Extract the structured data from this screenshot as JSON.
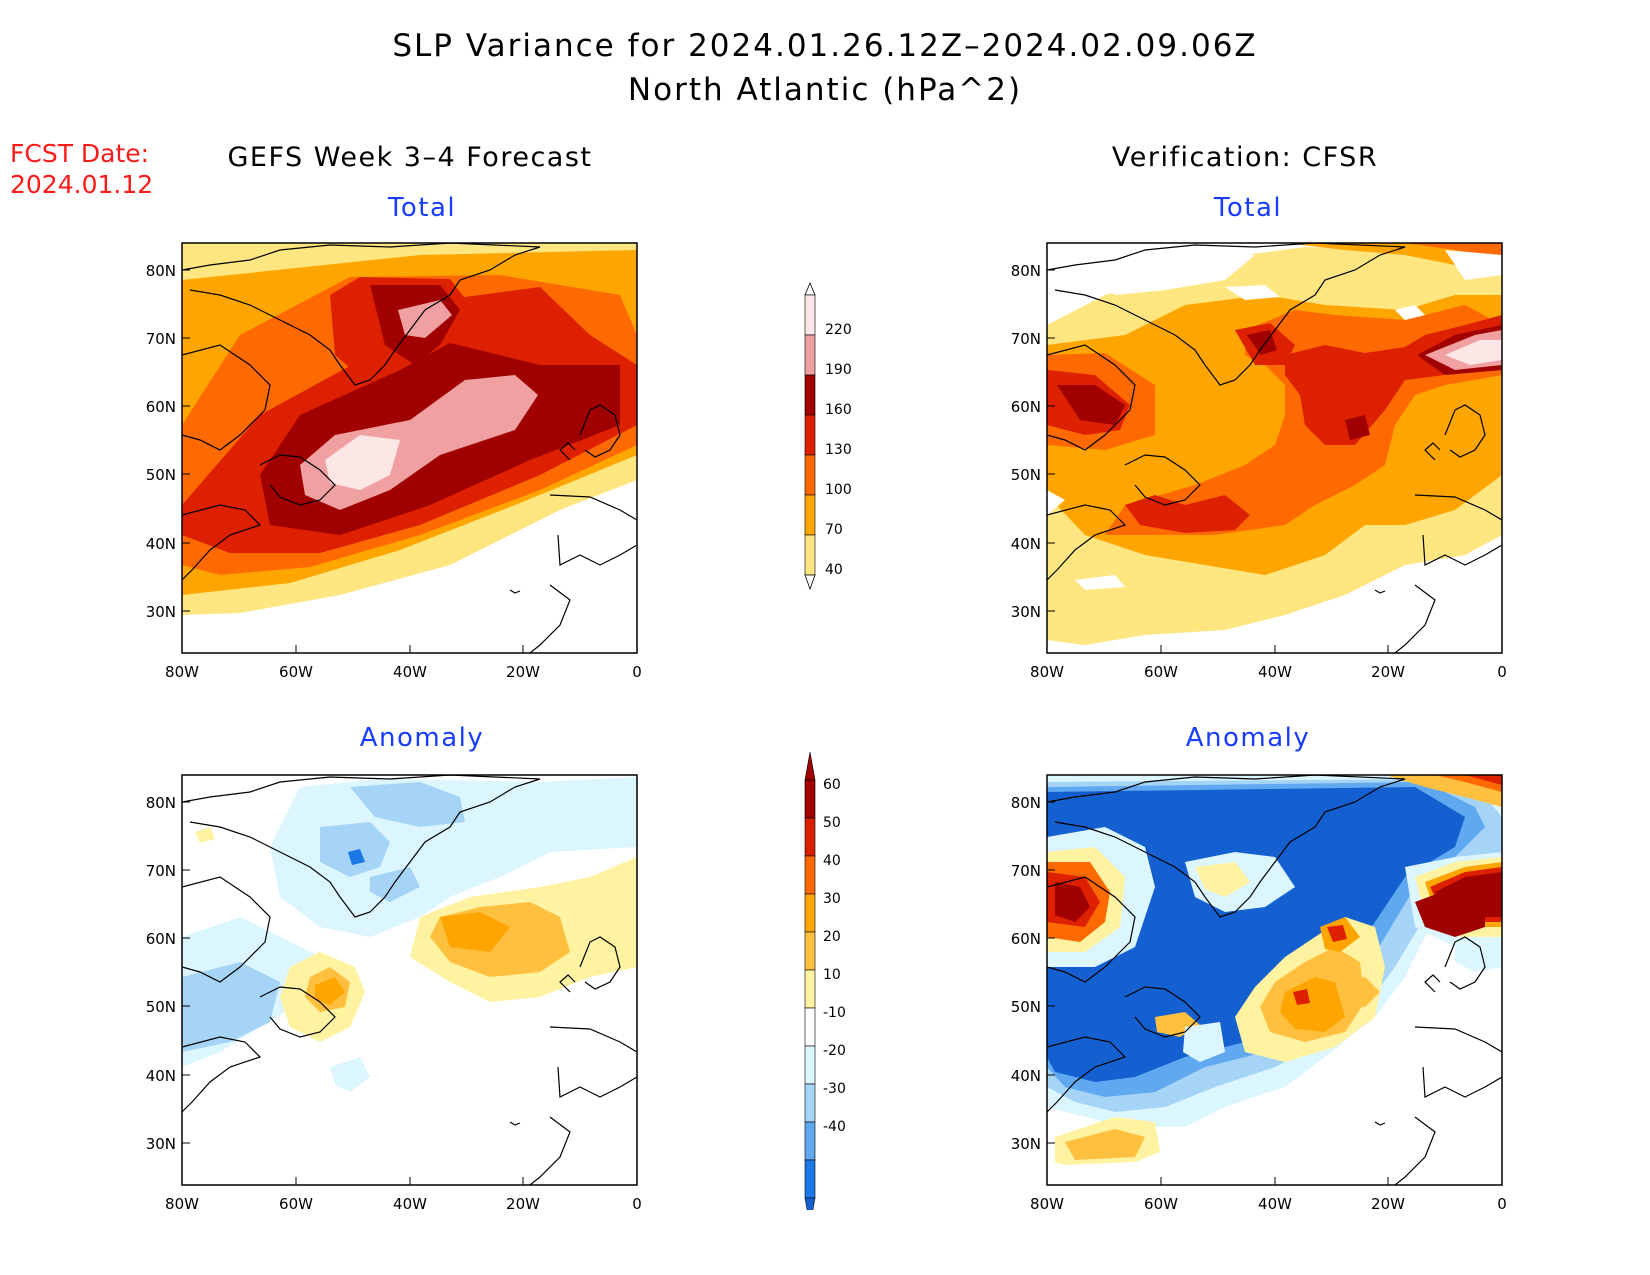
{
  "title": {
    "line1": "SLP Variance for 2024.01.26.12Z–2024.02.09.06Z",
    "line2": "North Atlantic (hPa^2)"
  },
  "fcst": {
    "label": "FCST Date:",
    "date": "2024.01.12"
  },
  "columns": {
    "left": "GEFS Week 3–4 Forecast",
    "right": "Verification: CFSR"
  },
  "panels": {
    "top_left": "Total",
    "top_right": "Total",
    "bottom_left": "Anomaly",
    "bottom_right": "Anomaly"
  },
  "axes": {
    "lon_ticks": [
      "80W",
      "60W",
      "40W",
      "20W",
      "0"
    ],
    "lat_ticks": [
      "80N",
      "70N",
      "60N",
      "50N",
      "40N",
      "30N"
    ]
  },
  "colorbars": {
    "total": {
      "levels": [
        "220",
        "190",
        "160",
        "130",
        "100",
        "70",
        "40"
      ],
      "colors": [
        "#fde6e6",
        "#f0a0a0",
        "#a00000",
        "#dd2000",
        "#ff6a00",
        "#ffa500",
        "#ffe680"
      ]
    },
    "anomaly": {
      "levels": [
        "60",
        "50",
        "40",
        "30",
        "20",
        "10",
        "-10",
        "-20",
        "-30",
        "-40"
      ],
      "colors": [
        "#a00000",
        "#d82000",
        "#ff6a00",
        "#ffa500",
        "#ffc040",
        "#fff2a0",
        "#ffffff",
        "#dcf6ff",
        "#a6d4f6",
        "#60a8f0",
        "#1a78e6",
        "#1560d0"
      ]
    }
  }
}
